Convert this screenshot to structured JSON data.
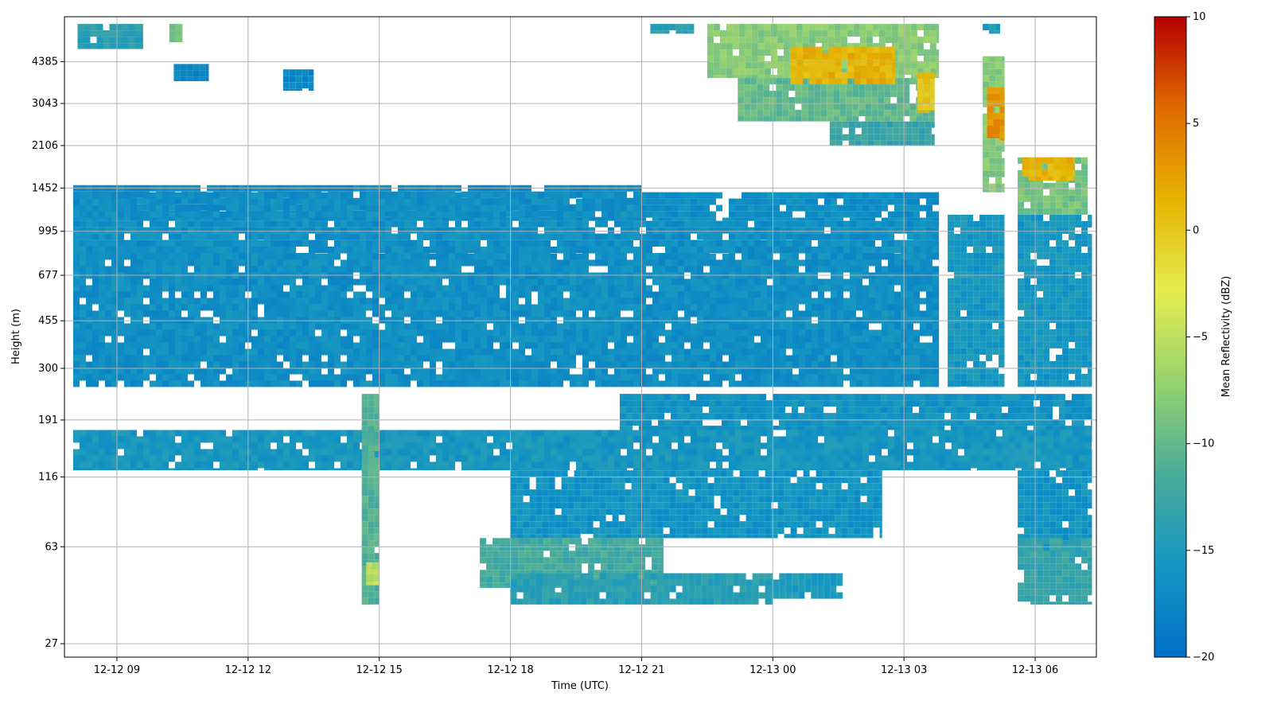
{
  "chart_data": {
    "type": "heatmap",
    "title": "",
    "xlabel": "Time (UTC)",
    "ylabel": "Height (m)",
    "x_ticks": [
      "12-12 09",
      "12-12 12",
      "12-12 15",
      "12-12 18",
      "12-12 21",
      "12-13 00",
      "12-13 03",
      "12-13 06"
    ],
    "x_tick_hours": [
      9,
      12,
      15,
      18,
      21,
      24,
      27,
      30
    ],
    "xlim_hours": [
      7.8,
      31.4
    ],
    "y_ticks": [
      27,
      63,
      116,
      191,
      300,
      455,
      677,
      995,
      1452,
      2106,
      3043,
      4385
    ],
    "ylim": [
      24,
      6500
    ],
    "y_scale": "log",
    "grid": true,
    "colorbar": {
      "label": "Mean Reflectivity (dBZ)",
      "min": -20,
      "max": 10,
      "ticks": [
        10,
        5,
        0,
        -5,
        -10,
        -15,
        -20
      ],
      "tick_labels": [
        "10",
        "5",
        "0",
        "−5",
        "−10",
        "−15",
        "−20"
      ],
      "colormap": [
        "#0070c8",
        "#1596c2",
        "#4aac9a",
        "#96d26e",
        "#e6ec50",
        "#e6b400",
        "#e06a00",
        "#b50000"
      ]
    },
    "regions": [
      {
        "t0": 8.0,
        "t1": 27.8,
        "h0": 255,
        "h1": 820,
        "dbz": -16.5
      },
      {
        "t0": 8.0,
        "t1": 27.8,
        "h0": 820,
        "h1": 920,
        "dbz": -16.5
      },
      {
        "t0": 8.0,
        "t1": 27.8,
        "h0": 920,
        "h1": 1090,
        "dbz": -16.5
      },
      {
        "t0": 8.0,
        "t1": 21.0,
        "h0": 1090,
        "h1": 1490,
        "dbz": -16.8
      },
      {
        "t0": 8.0,
        "t1": 27.8,
        "h0": 1090,
        "h1": 1400,
        "dbz": -16.5
      },
      {
        "t0": 28.0,
        "t1": 29.3,
        "h0": 255,
        "h1": 1150,
        "dbz": -15.5
      },
      {
        "t0": 29.6,
        "t1": 31.3,
        "h0": 255,
        "h1": 1150,
        "dbz": -15.5
      },
      {
        "t0": 8.0,
        "t1": 31.3,
        "h0": 123,
        "h1": 175,
        "dbz": -15.5
      },
      {
        "t0": 20.5,
        "t1": 31.3,
        "h0": 175,
        "h1": 240,
        "dbz": -16.0
      },
      {
        "t0": 18.0,
        "t1": 26.5,
        "h0": 68,
        "h1": 123,
        "dbz": -16.0
      },
      {
        "t0": 29.6,
        "t1": 31.3,
        "h0": 60,
        "h1": 123,
        "dbz": -16.0
      },
      {
        "t0": 17.3,
        "t1": 21.5,
        "h0": 44,
        "h1": 68,
        "dbz": -12.0
      },
      {
        "t0": 18.0,
        "t1": 24.0,
        "h0": 38,
        "h1": 50,
        "dbz": -14.0
      },
      {
        "t0": 29.6,
        "t1": 31.3,
        "h0": 38,
        "h1": 68,
        "dbz": -13.0
      },
      {
        "t0": 14.6,
        "t1": 15.0,
        "h0": 38,
        "h1": 240,
        "dbz": -11.0
      },
      {
        "t0": 14.7,
        "t1": 15.0,
        "h0": 45,
        "h1": 55,
        "dbz": -5.0
      },
      {
        "t0": 24.0,
        "t1": 25.6,
        "h0": 40,
        "h1": 50,
        "dbz": -15.0
      },
      {
        "t0": 8.1,
        "t1": 9.6,
        "h0": 4900,
        "h1": 6100,
        "dbz": -14.0
      },
      {
        "t0": 10.2,
        "t1": 10.5,
        "h0": 5200,
        "h1": 6100,
        "dbz": -9.0
      },
      {
        "t0": 10.3,
        "t1": 11.1,
        "h0": 3700,
        "h1": 4300,
        "dbz": -17.5
      },
      {
        "t0": 12.8,
        "t1": 13.5,
        "h0": 3400,
        "h1": 4100,
        "dbz": -17.5
      },
      {
        "t0": 21.2,
        "t1": 22.2,
        "h0": 5600,
        "h1": 6100,
        "dbz": -14.0
      },
      {
        "t0": 22.5,
        "t1": 27.8,
        "h0": 3800,
        "h1": 6100,
        "dbz": -8.0
      },
      {
        "t0": 23.2,
        "t1": 27.7,
        "h0": 2600,
        "h1": 3800,
        "dbz": -10.0
      },
      {
        "t0": 25.3,
        "t1": 27.7,
        "h0": 2100,
        "h1": 2600,
        "dbz": -13.0
      },
      {
        "t0": 24.4,
        "t1": 26.8,
        "h0": 3600,
        "h1": 5000,
        "dbz": 1.5
      },
      {
        "t0": 27.3,
        "t1": 27.7,
        "h0": 2800,
        "h1": 4000,
        "dbz": 0.5
      },
      {
        "t0": 28.8,
        "t1": 29.3,
        "h0": 1400,
        "h1": 4600,
        "dbz": -8.0
      },
      {
        "t0": 28.9,
        "t1": 29.3,
        "h0": 2200,
        "h1": 3500,
        "dbz": 3.5
      },
      {
        "t0": 29.6,
        "t1": 31.2,
        "h0": 1150,
        "h1": 1900,
        "dbz": -9.0
      },
      {
        "t0": 29.7,
        "t1": 30.9,
        "h0": 1550,
        "h1": 1900,
        "dbz": 1.5
      },
      {
        "t0": 28.8,
        "t1": 29.2,
        "h0": 5600,
        "h1": 6100,
        "dbz": -15.0
      }
    ]
  }
}
